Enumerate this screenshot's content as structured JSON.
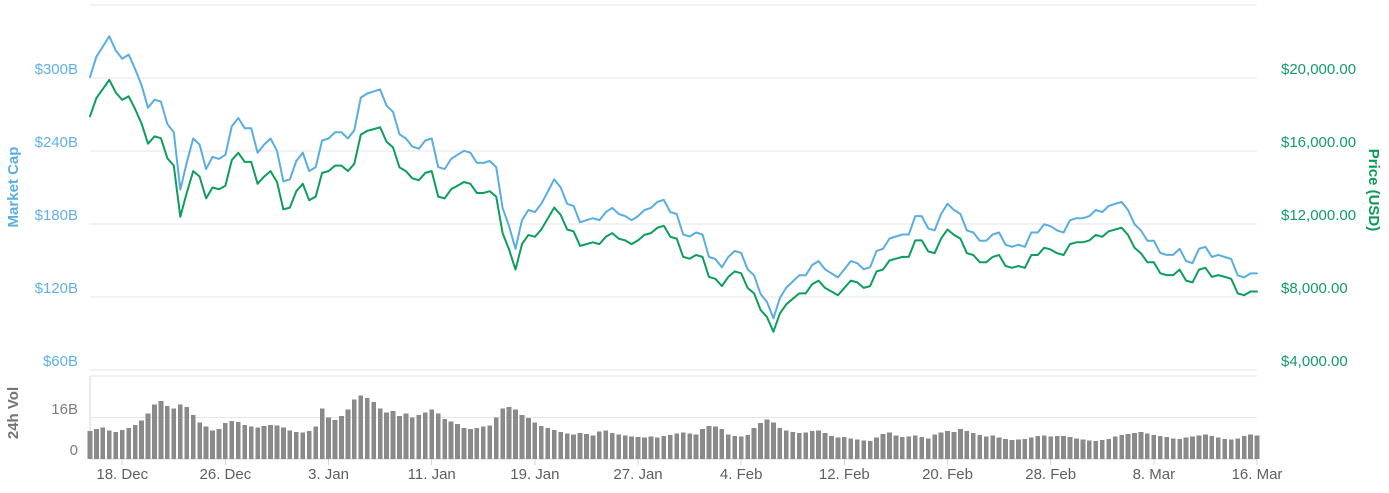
{
  "chart_data": {
    "type": "line",
    "title": "",
    "subtitle": "",
    "legend": "none",
    "grid": "horizontal",
    "step_hours": 12,
    "x_tick_labels": [
      "18. Dec",
      "26. Dec",
      "3. Jan",
      "11. Jan",
      "19. Jan",
      "27. Jan",
      "4. Feb",
      "12. Feb",
      "20. Feb",
      "28. Feb",
      "8. Mar",
      "16. Mar"
    ],
    "x_tick_indices": [
      5,
      21,
      37,
      53,
      69,
      85,
      101,
      117,
      133,
      149,
      165,
      181
    ],
    "left_axis": {
      "title": "Market Cap",
      "tick_labels": [
        "$300B",
        "$240B",
        "$180B",
        "$120B",
        "$60B"
      ],
      "tick_values_B": [
        300,
        240,
        180,
        120,
        60
      ],
      "range_B": [
        60,
        360
      ]
    },
    "right_axis": {
      "title": "Price (USD)",
      "tick_labels": [
        "$20,000.00",
        "$16,000.00",
        "$12,000.00",
        "$8,000.00",
        "$4,000.00"
      ],
      "tick_values_usd": [
        20000,
        16000,
        12000,
        8000,
        4000
      ],
      "range_usd": [
        4000,
        24000
      ]
    },
    "volume_axis": {
      "title": "24h Vol",
      "tick_labels": [
        "16B",
        "0"
      ],
      "tick_values_B": [
        16,
        0
      ],
      "range_B": [
        0,
        32
      ]
    },
    "series": [
      {
        "name": "Market Cap",
        "type": "line",
        "axis": "left",
        "unit": "USD billions",
        "color": "#58aee3",
        "values": [
          300.7,
          317.5,
          325.9,
          334.3,
          322.6,
          315.8,
          319.2,
          307.4,
          294.0,
          275.5,
          282.2,
          280.6,
          262.1,
          255.4,
          208.3,
          230.2,
          250.3,
          245.3,
          225.1,
          235.2,
          233.5,
          236.9,
          260.4,
          267.1,
          258.7,
          258.7,
          238.6,
          245.3,
          250.3,
          240.2,
          215.0,
          216.7,
          231.8,
          238.6,
          223.4,
          226.8,
          248.6,
          250.3,
          255.4,
          255.4,
          250.3,
          257.0,
          283.9,
          287.3,
          289.0,
          290.6,
          277.2,
          272.2,
          253.7,
          250.3,
          243.6,
          241.9,
          248.6,
          250.3,
          226.8,
          225.1,
          233.5,
          236.9,
          240.2,
          238.6,
          230.2,
          230.2,
          231.8,
          226.8,
          193.2,
          178.1,
          159.6,
          183.1,
          191.5,
          189.8,
          196.6,
          206.6,
          216.7,
          210.0,
          196.6,
          194.9,
          181.4,
          183.1,
          184.8,
          183.1,
          189.8,
          193.2,
          188.2,
          186.5,
          183.1,
          186.5,
          191.5,
          193.2,
          198.2,
          199.9,
          189.8,
          188.2,
          171.4,
          169.7,
          173.0,
          171.4,
          152.9,
          151.2,
          144.5,
          152.9,
          157.9,
          156.2,
          142.8,
          137.8,
          122.6,
          115.9,
          102.5,
          119.3,
          127.7,
          132.7,
          137.8,
          137.8,
          146.2,
          149.5,
          142.8,
          139.4,
          136.1,
          142.8,
          149.5,
          147.8,
          142.8,
          144.5,
          157.9,
          159.6,
          168.0,
          169.7,
          171.4,
          171.4,
          186.5,
          186.5,
          176.4,
          174.7,
          188.2,
          196.6,
          191.5,
          188.2,
          174.7,
          173.0,
          166.3,
          166.3,
          171.4,
          173.0,
          163.0,
          161.3,
          163.0,
          161.3,
          173.0,
          173.0,
          179.8,
          178.1,
          174.7,
          173.0,
          183.1,
          184.8,
          184.8,
          186.5,
          191.5,
          189.8,
          194.9,
          196.6,
          198.2,
          191.5,
          179.8,
          174.7,
          166.3,
          166.3,
          156.2,
          154.6,
          154.6,
          159.6,
          149.5,
          147.8,
          159.6,
          161.3,
          152.9,
          154.6,
          152.9,
          151.2,
          137.8,
          136.1,
          139.4,
          139.4
        ]
      },
      {
        "name": "Price (USD)",
        "type": "line",
        "axis": "right",
        "unit": "USD",
        "color": "#0d9d5c",
        "values": [
          17900,
          18900,
          19400,
          19900,
          19200,
          18800,
          19000,
          18300,
          17500,
          16400,
          16800,
          16700,
          15600,
          15200,
          12400,
          13700,
          14900,
          14600,
          13400,
          14000,
          13900,
          14100,
          15500,
          15900,
          15400,
          15400,
          14200,
          14600,
          14900,
          14300,
          12800,
          12900,
          13800,
          14200,
          13300,
          13500,
          14800,
          14900,
          15200,
          15200,
          14900,
          15300,
          16900,
          17100,
          17200,
          17300,
          16500,
          16200,
          15100,
          14900,
          14500,
          14400,
          14800,
          14900,
          13500,
          13400,
          13900,
          14100,
          14300,
          14200,
          13700,
          13700,
          13800,
          13500,
          11500,
          10600,
          9500,
          10900,
          11400,
          11300,
          11700,
          12300,
          12900,
          12500,
          11700,
          11600,
          10800,
          10900,
          11000,
          10900,
          11300,
          11500,
          11200,
          11100,
          10900,
          11100,
          11400,
          11500,
          11800,
          11900,
          11300,
          11200,
          10200,
          10100,
          10300,
          10200,
          9100,
          9000,
          8600,
          9100,
          9400,
          9300,
          8500,
          8200,
          7300,
          6900,
          6100,
          7100,
          7600,
          7900,
          8200,
          8200,
          8700,
          8900,
          8500,
          8300,
          8100,
          8500,
          8900,
          8800,
          8500,
          8600,
          9400,
          9500,
          10000,
          10100,
          10200,
          10200,
          11100,
          11100,
          10500,
          10400,
          11200,
          11700,
          11400,
          11200,
          10400,
          10300,
          9900,
          9900,
          10200,
          10300,
          9700,
          9600,
          9700,
          9600,
          10300,
          10300,
          10700,
          10600,
          10400,
          10300,
          10900,
          11000,
          11000,
          11100,
          11400,
          11300,
          11600,
          11700,
          11800,
          11400,
          10700,
          10400,
          9900,
          9900,
          9300,
          9200,
          9200,
          9500,
          8900,
          8800,
          9500,
          9600,
          9100,
          9200,
          9100,
          9000,
          8200,
          8100,
          8300,
          8300
        ]
      },
      {
        "name": "24h Vol",
        "type": "column",
        "axis": "volume",
        "unit": "USD billions",
        "color": "#8a8a8a",
        "values": [
          10.8,
          11.6,
          12.2,
          11.0,
          10.4,
          11.2,
          12.0,
          13.2,
          14.8,
          17.5,
          21.0,
          22.3,
          20.5,
          19.5,
          21.0,
          20.0,
          17.0,
          14.0,
          12.5,
          11.0,
          11.5,
          13.8,
          14.6,
          14.2,
          13.2,
          12.6,
          12.2,
          12.8,
          13.2,
          13.0,
          12.2,
          11.0,
          10.5,
          10.2,
          10.8,
          12.5,
          19.5,
          16.0,
          15.0,
          16.5,
          19.0,
          23.0,
          24.5,
          23.5,
          22.0,
          19.5,
          18.0,
          18.5,
          16.5,
          17.5,
          16.0,
          17.0,
          18.0,
          19.0,
          17.5,
          15.5,
          14.5,
          13.5,
          12.0,
          11.5,
          12.0,
          12.5,
          13.0,
          16.0,
          19.5,
          20.0,
          19.0,
          17.0,
          15.8,
          14.0,
          12.8,
          12.0,
          11.2,
          10.4,
          9.8,
          9.4,
          10.0,
          9.6,
          9.0,
          10.6,
          11.0,
          10.0,
          9.4,
          9.0,
          8.6,
          8.4,
          8.2,
          8.6,
          8.3,
          8.8,
          9.2,
          9.8,
          10.2,
          9.8,
          9.4,
          11.5,
          12.8,
          12.5,
          11.5,
          9.5,
          8.8,
          8.6,
          9.2,
          12.0,
          13.8,
          15.2,
          14.0,
          12.0,
          11.0,
          10.5,
          10.0,
          10.2,
          10.8,
          11.0,
          10.0,
          8.8,
          8.2,
          8.4,
          8.0,
          7.6,
          7.2,
          7.0,
          8.2,
          9.6,
          10.2,
          9.0,
          8.4,
          8.6,
          9.0,
          8.4,
          8.0,
          9.4,
          10.2,
          10.8,
          10.4,
          11.6,
          10.8,
          10.0,
          9.2,
          8.6,
          9.0,
          8.2,
          7.8,
          7.4,
          7.6,
          7.8,
          8.2,
          8.8,
          9.0,
          8.6,
          8.8,
          8.8,
          8.4,
          8.0,
          7.6,
          7.2,
          7.0,
          7.4,
          7.8,
          8.6,
          9.2,
          9.6,
          10.0,
          10.4,
          9.8,
          9.2,
          8.8,
          8.4,
          8.0,
          7.8,
          8.2,
          8.6,
          9.0,
          9.4,
          8.8,
          8.2,
          7.8,
          7.6,
          8.0,
          8.8,
          9.4,
          9.0
        ]
      }
    ]
  },
  "colors": {
    "market_cap_line": "#58aee3",
    "market_cap_labels": "#61b1e6",
    "price_line": "#0d9d5c",
    "price_labels": "#149a70",
    "volume_bars": "#8a8a8a",
    "volume_labels": "#7c7c7c",
    "x_labels": "#5d5f61",
    "gridline": "#e6e6e6",
    "axis_line": "#ccd6eb",
    "background": "#ffffff"
  }
}
